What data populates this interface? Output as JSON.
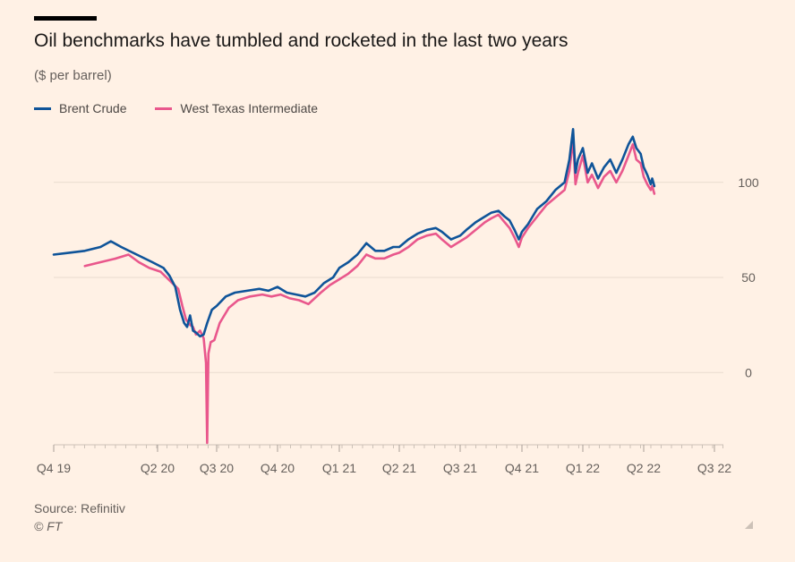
{
  "chart_data": {
    "type": "line",
    "title": "Oil benchmarks have tumbled and rocketed in the last two years",
    "subtitle": "($ per barrel)",
    "ylim": [
      -38,
      130
    ],
    "yticks": [
      0,
      50,
      100
    ],
    "x_ticks": [
      "Q4 19",
      "Q2 20",
      "Q3 20",
      "Q4 20",
      "Q1 21",
      "Q2 21",
      "Q3 21",
      "Q4 21",
      "Q1 22",
      "Q2 22",
      "Q3 22"
    ],
    "legend_position": "top-left",
    "grid": true,
    "series": [
      {
        "name": "Brent Crude",
        "color": "#0f5499",
        "points": [
          [
            0,
            62
          ],
          [
            0.15,
            63
          ],
          [
            0.3,
            64
          ],
          [
            0.45,
            66
          ],
          [
            0.55,
            69
          ],
          [
            0.65,
            66
          ],
          [
            0.8,
            62
          ],
          [
            0.95,
            58
          ],
          [
            1.1,
            55
          ],
          [
            1.2,
            51
          ],
          [
            1.3,
            45
          ],
          [
            1.38,
            33
          ],
          [
            1.45,
            26
          ],
          [
            1.5,
            24
          ],
          [
            1.55,
            30
          ],
          [
            1.6,
            22
          ],
          [
            1.65,
            21
          ],
          [
            1.72,
            19
          ],
          [
            1.78,
            20
          ],
          [
            1.84,
            26
          ],
          [
            1.92,
            33
          ],
          [
            2.0,
            35
          ],
          [
            2.15,
            40
          ],
          [
            2.3,
            42
          ],
          [
            2.5,
            43
          ],
          [
            2.7,
            44
          ],
          [
            2.85,
            43
          ],
          [
            3.0,
            45
          ],
          [
            3.15,
            42
          ],
          [
            3.3,
            41
          ],
          [
            3.45,
            40
          ],
          [
            3.6,
            42
          ],
          [
            3.75,
            47
          ],
          [
            3.9,
            50
          ],
          [
            4.0,
            55
          ],
          [
            4.15,
            58
          ],
          [
            4.3,
            62
          ],
          [
            4.45,
            68
          ],
          [
            4.6,
            64
          ],
          [
            4.75,
            64
          ],
          [
            4.9,
            66
          ],
          [
            5.0,
            66
          ],
          [
            5.15,
            70
          ],
          [
            5.3,
            73
          ],
          [
            5.45,
            75
          ],
          [
            5.6,
            76
          ],
          [
            5.7,
            74
          ],
          [
            5.85,
            70
          ],
          [
            6.0,
            72
          ],
          [
            6.1,
            75
          ],
          [
            6.25,
            79
          ],
          [
            6.4,
            82
          ],
          [
            6.5,
            84
          ],
          [
            6.62,
            85
          ],
          [
            6.72,
            82
          ],
          [
            6.8,
            80
          ],
          [
            6.88,
            75
          ],
          [
            6.95,
            70
          ],
          [
            7.0,
            74
          ],
          [
            7.1,
            78
          ],
          [
            7.25,
            86
          ],
          [
            7.4,
            90
          ],
          [
            7.55,
            96
          ],
          [
            7.7,
            100
          ],
          [
            7.78,
            112
          ],
          [
            7.84,
            128
          ],
          [
            7.88,
            105
          ],
          [
            7.92,
            112
          ],
          [
            8.0,
            118
          ],
          [
            8.08,
            105
          ],
          [
            8.15,
            110
          ],
          [
            8.25,
            102
          ],
          [
            8.35,
            108
          ],
          [
            8.45,
            112
          ],
          [
            8.55,
            105
          ],
          [
            8.65,
            112
          ],
          [
            8.75,
            120
          ],
          [
            8.82,
            124
          ],
          [
            8.88,
            118
          ],
          [
            8.95,
            115
          ],
          [
            9.0,
            108
          ],
          [
            9.05,
            104
          ],
          [
            9.1,
            99
          ],
          [
            9.12,
            102
          ],
          [
            9.15,
            98
          ]
        ]
      },
      {
        "name": "West Texas Intermediate",
        "color": "#e9578c",
        "points": [
          [
            0.3,
            56
          ],
          [
            0.45,
            58
          ],
          [
            0.6,
            60
          ],
          [
            0.72,
            62
          ],
          [
            0.82,
            58
          ],
          [
            0.92,
            55
          ],
          [
            1.05,
            53
          ],
          [
            1.15,
            50
          ],
          [
            1.25,
            47
          ],
          [
            1.35,
            44
          ],
          [
            1.42,
            35
          ],
          [
            1.48,
            28
          ],
          [
            1.55,
            25
          ],
          [
            1.6,
            24
          ],
          [
            1.65,
            20
          ],
          [
            1.72,
            22
          ],
          [
            1.78,
            18
          ],
          [
            1.82,
            5
          ],
          [
            1.84,
            -37
          ],
          [
            1.86,
            10
          ],
          [
            1.9,
            16
          ],
          [
            1.96,
            17
          ],
          [
            2.05,
            26
          ],
          [
            2.2,
            34
          ],
          [
            2.35,
            38
          ],
          [
            2.55,
            40
          ],
          [
            2.75,
            41
          ],
          [
            2.9,
            40
          ],
          [
            3.05,
            41
          ],
          [
            3.2,
            39
          ],
          [
            3.35,
            38
          ],
          [
            3.5,
            36
          ],
          [
            3.7,
            42
          ],
          [
            3.85,
            46
          ],
          [
            4.0,
            49
          ],
          [
            4.15,
            52
          ],
          [
            4.3,
            56
          ],
          [
            4.45,
            62
          ],
          [
            4.6,
            60
          ],
          [
            4.75,
            60
          ],
          [
            4.9,
            62
          ],
          [
            5.0,
            63
          ],
          [
            5.15,
            66
          ],
          [
            5.3,
            70
          ],
          [
            5.45,
            72
          ],
          [
            5.6,
            73
          ],
          [
            5.7,
            70
          ],
          [
            5.85,
            66
          ],
          [
            6.0,
            69
          ],
          [
            6.1,
            71
          ],
          [
            6.25,
            75
          ],
          [
            6.4,
            79
          ],
          [
            6.5,
            81
          ],
          [
            6.62,
            83
          ],
          [
            6.72,
            79
          ],
          [
            6.8,
            76
          ],
          [
            6.88,
            71
          ],
          [
            6.95,
            66
          ],
          [
            7.0,
            71
          ],
          [
            7.1,
            76
          ],
          [
            7.25,
            82
          ],
          [
            7.4,
            88
          ],
          [
            7.55,
            92
          ],
          [
            7.7,
            96
          ],
          [
            7.78,
            106
          ],
          [
            7.84,
            123
          ],
          [
            7.88,
            99
          ],
          [
            7.92,
            105
          ],
          [
            8.0,
            114
          ],
          [
            8.08,
            100
          ],
          [
            8.15,
            104
          ],
          [
            8.25,
            97
          ],
          [
            8.35,
            103
          ],
          [
            8.45,
            106
          ],
          [
            8.55,
            100
          ],
          [
            8.65,
            106
          ],
          [
            8.75,
            114
          ],
          [
            8.82,
            120
          ],
          [
            8.88,
            112
          ],
          [
            8.95,
            110
          ],
          [
            9.0,
            103
          ],
          [
            9.05,
            99
          ],
          [
            9.1,
            96
          ],
          [
            9.12,
            98
          ],
          [
            9.15,
            94
          ]
        ]
      }
    ]
  },
  "source": "Source: Refinitiv",
  "credit": "© FT"
}
